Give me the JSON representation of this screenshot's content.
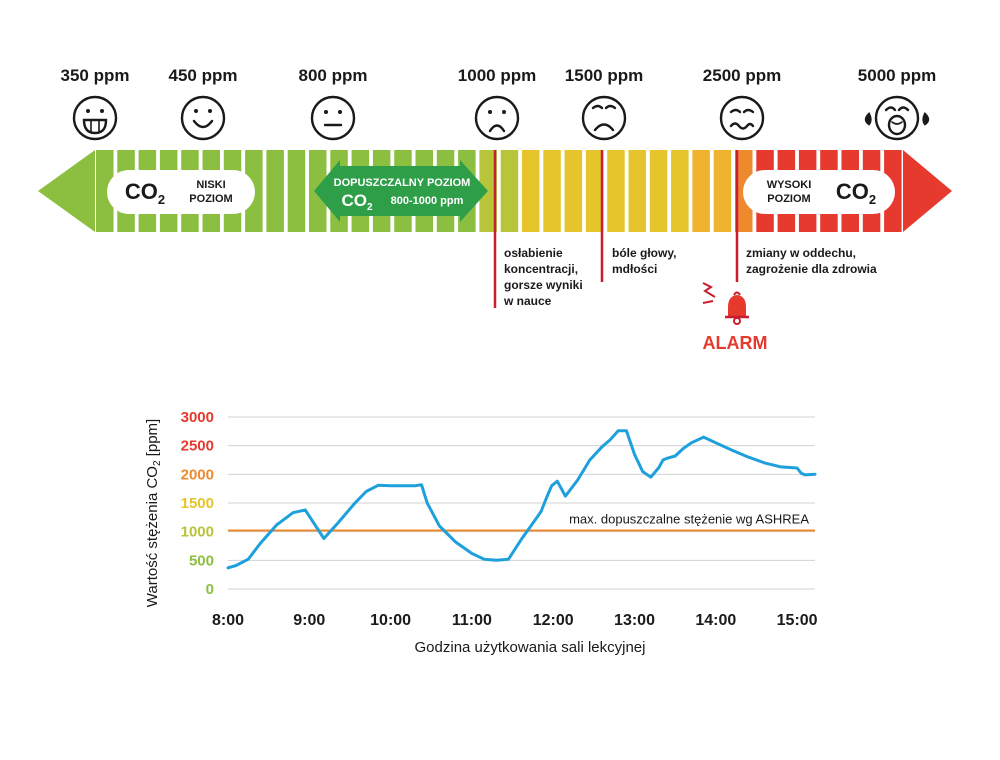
{
  "scale": {
    "levels": [
      {
        "label": "350 ppm",
        "face": "big-smile"
      },
      {
        "label": "450 ppm",
        "face": "smile"
      },
      {
        "label": "800 ppm",
        "face": "neutral"
      },
      {
        "label": "1000 ppm",
        "face": "frown"
      },
      {
        "label": "1500 ppm",
        "face": "sad"
      },
      {
        "label": "2500 ppm",
        "face": "nauseous"
      },
      {
        "label": "5000 ppm",
        "face": "crying"
      }
    ],
    "low_badge": {
      "co2": "CO",
      "sub": "2",
      "line1": "NISKI",
      "line2": "POZIOM"
    },
    "high_badge": {
      "co2": "CO",
      "sub": "2",
      "line1": "WYSOKI",
      "line2": "POZIOM"
    },
    "acceptable": {
      "line1": "DOPUSZCZALNY POZIOM",
      "co2": "CO",
      "sub": "2",
      "range": "800-1000 ppm"
    },
    "effects": [
      {
        "lines": [
          "osłabienie",
          "koncentracji,",
          "gorsze wyniki",
          "w nauce"
        ]
      },
      {
        "lines": [
          "bóle głowy,",
          "mdłości"
        ]
      },
      {
        "lines": [
          "zmiany w oddechu,",
          "zagrożenie dla zdrowia"
        ]
      }
    ],
    "alarm": "ALARM",
    "colors": {
      "green": "#8cbf3f",
      "dark_green": "#2f9e49",
      "yellow_green": "#b8c43a",
      "yellow": "#e6c42b",
      "orange_yellow": "#f0b330",
      "orange": "#ee8a2e",
      "red": "#e63a2e",
      "marker_red": "#c81e2d"
    }
  },
  "chart_data": {
    "type": "line",
    "xlabel": "Godzina użytkowania sali lekcyjnej",
    "ylabel": "Wartość stężenia CO",
    "ylabel_sub": "2",
    "ylabel_unit": " [ppm]",
    "xlim": [
      8.0,
      15.22
    ],
    "ylim": [
      0,
      3000
    ],
    "xticks": [
      "8:00",
      "9:00",
      "10:00",
      "11:00",
      "12:00",
      "13:00",
      "14:00",
      "15:00"
    ],
    "xtick_values": [
      8,
      9,
      10,
      11,
      12,
      13,
      14,
      15
    ],
    "yticks": [
      {
        "label": "3000",
        "value": 3000,
        "color": "#e63a2e"
      },
      {
        "label": "2500",
        "value": 2500,
        "color": "#e63a2e"
      },
      {
        "label": "2000",
        "value": 2000,
        "color": "#ee8a2e"
      },
      {
        "label": "1500",
        "value": 1500,
        "color": "#e6c42b"
      },
      {
        "label": "1000",
        "value": 1000,
        "color": "#b8c43a"
      },
      {
        "label": "500",
        "value": 500,
        "color": "#8cbf3f"
      },
      {
        "label": "0",
        "value": 0,
        "color": "#8cbf3f"
      }
    ],
    "grid": true,
    "line_color": "#1ea0dc",
    "threshold": {
      "value": 1020,
      "label": "max. dopuszczalne stężenie wg ASHREA",
      "color": "#ee8a2e"
    },
    "series": [
      {
        "x": [
          8.0,
          8.1,
          8.25,
          8.4,
          8.6,
          8.8,
          8.95,
          9.0,
          9.18,
          9.35,
          9.55,
          9.7,
          9.85,
          10.0,
          10.15,
          10.3,
          10.38,
          10.45,
          10.6,
          10.8,
          11.0,
          11.15,
          11.3,
          11.45,
          11.6,
          11.75,
          11.85,
          11.92,
          11.98,
          12.05,
          12.15,
          12.3,
          12.45,
          12.6,
          12.7,
          12.8,
          12.9,
          13.0,
          13.1,
          13.2,
          13.3,
          13.35,
          13.4,
          13.5,
          13.6,
          13.7,
          13.85,
          14.0,
          14.2,
          14.4,
          14.6,
          14.8,
          15.0,
          15.05,
          15.1,
          15.22
        ],
        "y": [
          370,
          410,
          520,
          800,
          1120,
          1330,
          1380,
          1270,
          880,
          1150,
          1480,
          1700,
          1810,
          1800,
          1800,
          1800,
          1820,
          1500,
          1100,
          820,
          620,
          520,
          500,
          520,
          850,
          1150,
          1350,
          1600,
          1800,
          1880,
          1620,
          1900,
          2250,
          2480,
          2600,
          2760,
          2760,
          2350,
          2050,
          1950,
          2120,
          2250,
          2280,
          2320,
          2450,
          2550,
          2650,
          2550,
          2420,
          2300,
          2200,
          2130,
          2110,
          2020,
          1990,
          2000
        ]
      }
    ]
  }
}
